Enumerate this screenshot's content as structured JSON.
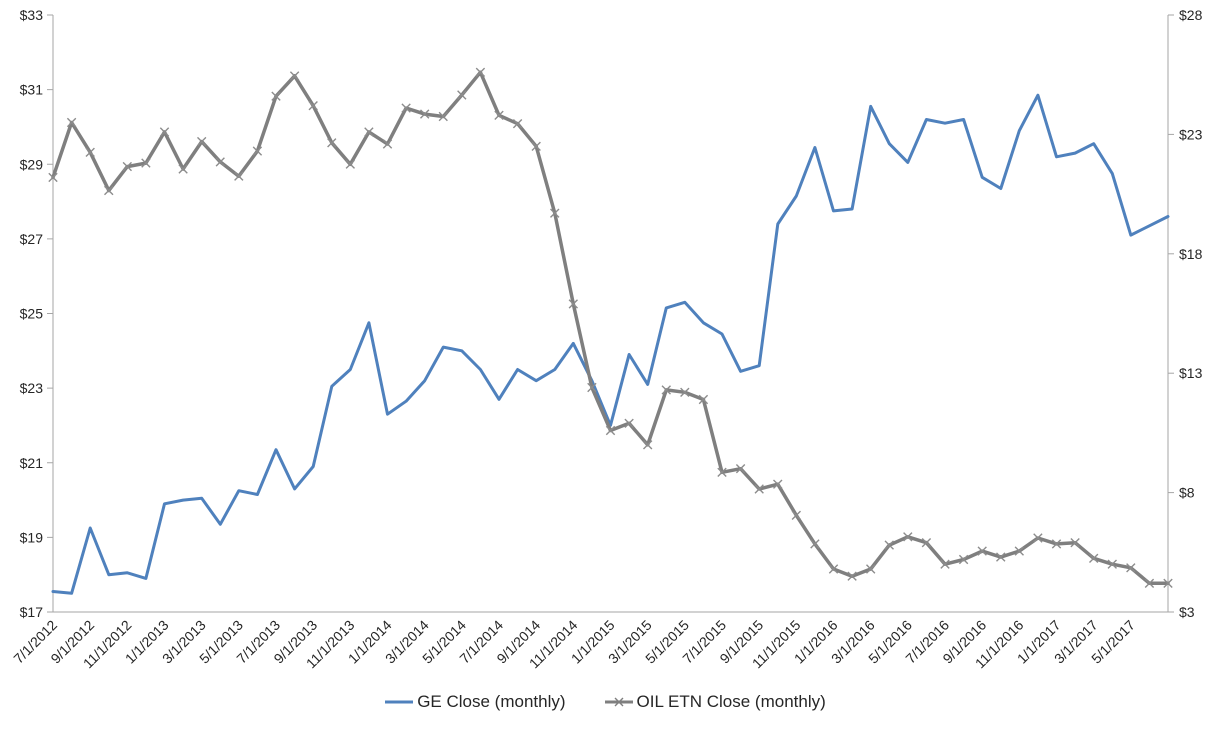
{
  "chart_data": {
    "type": "line",
    "title": "",
    "x": [
      "7/1/2012",
      "8/1/2012",
      "9/1/2012",
      "10/1/2012",
      "11/1/2012",
      "12/1/2012",
      "1/1/2013",
      "2/1/2013",
      "3/1/2013",
      "4/1/2013",
      "5/1/2013",
      "6/1/2013",
      "7/1/2013",
      "8/1/2013",
      "9/1/2013",
      "10/1/2013",
      "11/1/2013",
      "12/1/2013",
      "1/1/2014",
      "2/1/2014",
      "3/1/2014",
      "4/1/2014",
      "5/1/2014",
      "6/1/2014",
      "7/1/2014",
      "8/1/2014",
      "9/1/2014",
      "10/1/2014",
      "11/1/2014",
      "12/1/2014",
      "1/1/2015",
      "2/1/2015",
      "3/1/2015",
      "4/1/2015",
      "5/1/2015",
      "6/1/2015",
      "7/1/2015",
      "8/1/2015",
      "9/1/2015",
      "10/1/2015",
      "11/1/2015",
      "12/1/2015",
      "1/1/2016",
      "2/1/2016",
      "3/1/2016",
      "4/1/2016",
      "5/1/2016",
      "6/1/2016",
      "7/1/2016",
      "8/1/2016",
      "9/1/2016",
      "10/1/2016",
      "11/1/2016",
      "12/1/2016",
      "1/1/2017",
      "2/1/2017",
      "3/1/2017",
      "4/1/2017",
      "5/1/2017",
      "6/1/2017",
      "7/1/2017"
    ],
    "x_tick_interval": 2,
    "x_tick_labels": [
      "7/1/2012",
      "9/1/2012",
      "11/1/2012",
      "1/1/2013",
      "3/1/2013",
      "5/1/2013",
      "7/1/2013",
      "9/1/2013",
      "11/1/2013",
      "1/1/2014",
      "3/1/2014",
      "5/1/2014",
      "7/1/2014",
      "9/1/2014",
      "11/1/2014",
      "1/1/2015",
      "3/1/2015",
      "5/1/2015",
      "7/1/2015",
      "9/1/2015",
      "11/1/2015",
      "1/1/2016",
      "3/1/2016",
      "5/1/2016",
      "7/1/2016",
      "9/1/2016",
      "11/1/2016",
      "1/1/2017",
      "3/1/2017",
      "5/1/2017"
    ],
    "series": [
      {
        "name": "GE Close (monthly)",
        "axis": "left",
        "color": "#4f81bd",
        "marker": "none",
        "stroke_width": 3,
        "values": [
          17.55,
          17.5,
          19.25,
          18.0,
          18.05,
          17.9,
          19.9,
          20.0,
          20.05,
          19.35,
          20.25,
          20.15,
          21.35,
          20.3,
          20.9,
          23.05,
          23.5,
          24.75,
          22.3,
          22.65,
          23.2,
          24.1,
          24.0,
          23.5,
          22.7,
          23.5,
          23.2,
          23.5,
          24.2,
          23.2,
          22.0,
          23.9,
          23.1,
          25.15,
          25.3,
          24.75,
          24.45,
          23.45,
          23.6,
          27.4,
          28.15,
          29.45,
          27.75,
          27.8,
          30.55,
          29.55,
          29.05,
          30.2,
          30.1,
          30.2,
          28.65,
          28.35,
          29.9,
          30.85,
          29.2,
          29.3,
          29.55,
          28.75,
          27.1,
          27.35,
          27.6
        ]
      },
      {
        "name": "OIL ETN Close (monthly)",
        "axis": "right",
        "color": "#7f7f7f",
        "marker": "x",
        "stroke_width": 3.5,
        "values": [
          21.2,
          23.5,
          22.25,
          20.65,
          21.65,
          21.8,
          23.1,
          21.55,
          22.7,
          21.85,
          21.25,
          22.3,
          24.6,
          25.45,
          24.2,
          22.65,
          21.75,
          23.1,
          22.6,
          24.1,
          23.85,
          23.75,
          24.65,
          25.6,
          23.8,
          23.45,
          22.5,
          19.7,
          15.9,
          12.4,
          10.6,
          10.9,
          10.0,
          12.3,
          12.2,
          11.9,
          8.85,
          9.0,
          8.15,
          8.35,
          7.05,
          5.85,
          4.8,
          4.5,
          4.8,
          5.8,
          6.15,
          5.9,
          5.0,
          5.2,
          5.55,
          5.3,
          5.55,
          6.1,
          5.85,
          5.9,
          5.25,
          5.0,
          4.85,
          4.2,
          4.2
        ]
      }
    ],
    "left_axis": {
      "min": 17,
      "max": 33,
      "tick_step": 2,
      "tick_labels": [
        "$33",
        "$31",
        "$29",
        "$27",
        "$25",
        "$23",
        "$21",
        "$19",
        "$17"
      ]
    },
    "right_axis": {
      "min": 3,
      "max": 28,
      "tick_step": 5,
      "tick_labels": [
        "$28",
        "$23",
        "$18",
        "$13",
        "$8",
        "$3"
      ]
    },
    "grid": "off",
    "legend_position": "bottom"
  },
  "styles": {
    "axis_line_color": "#a6a6a6",
    "tick_text_color": "#262626",
    "marker_color": "#8c8c8c",
    "background": "#ffffff"
  }
}
